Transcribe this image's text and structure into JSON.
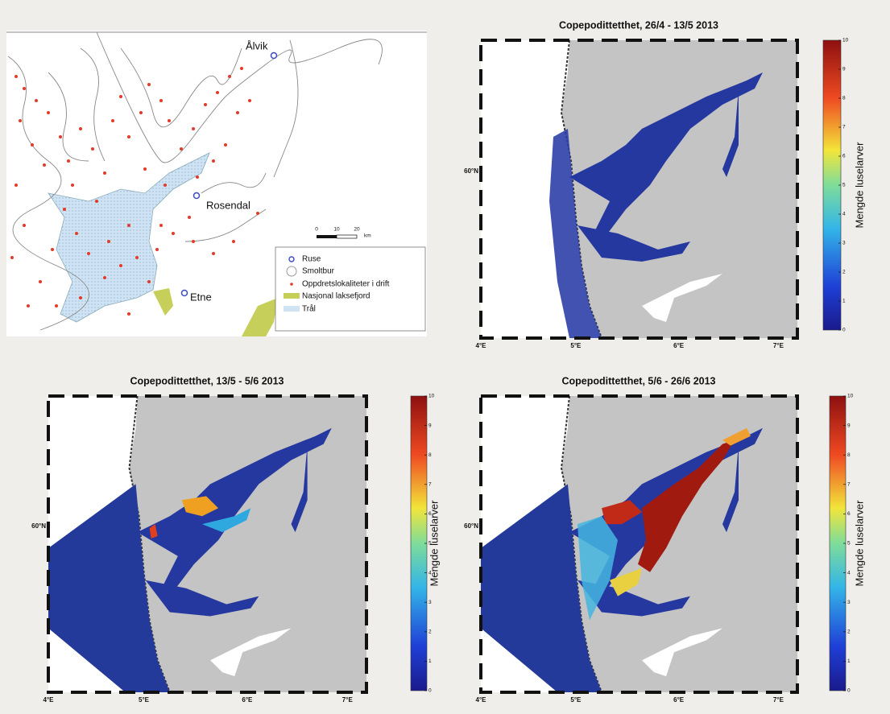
{
  "overview_map": {
    "places": [
      "Ålvik",
      "Rosendal",
      "Etne"
    ],
    "legend": [
      "Ruse",
      "Smoltbur",
      "Oppdretslokaliteter i drift",
      "Nasjonal laksefjord",
      "Trål"
    ],
    "scale": {
      "labels": [
        "0",
        "10",
        "20"
      ],
      "unit": "km"
    }
  },
  "panels": [
    {
      "title": "Copepodittetthet, 26/4 - 13/5 2013",
      "x_labels": [
        "4°E",
        "5°E",
        "6°E",
        "7°E"
      ],
      "y_label": "60°N",
      "colorbar": {
        "label": "Mengde luselarver",
        "ticks": [
          0,
          1,
          2,
          3,
          4,
          5,
          6,
          7,
          8,
          9,
          10
        ]
      }
    },
    {
      "title": "Copepodittetthet, 13/5 - 5/6 2013",
      "x_labels": [
        "4°E",
        "5°E",
        "6°E",
        "7°E"
      ],
      "y_label": "60°N",
      "colorbar": {
        "label": "Mengde luselarver",
        "ticks": [
          0,
          1,
          2,
          3,
          4,
          5,
          6,
          7,
          8,
          9,
          10
        ]
      }
    },
    {
      "title": "Copepodittetthet, 5/6 - 26/6 2013",
      "x_labels": [
        "4°E",
        "5°E",
        "6°E",
        "7°E"
      ],
      "y_label": "60°N",
      "colorbar": {
        "label": "Mengde luselarver",
        "ticks": [
          0,
          1,
          2,
          3,
          4,
          5,
          6,
          7,
          8,
          9,
          10
        ]
      }
    }
  ]
}
